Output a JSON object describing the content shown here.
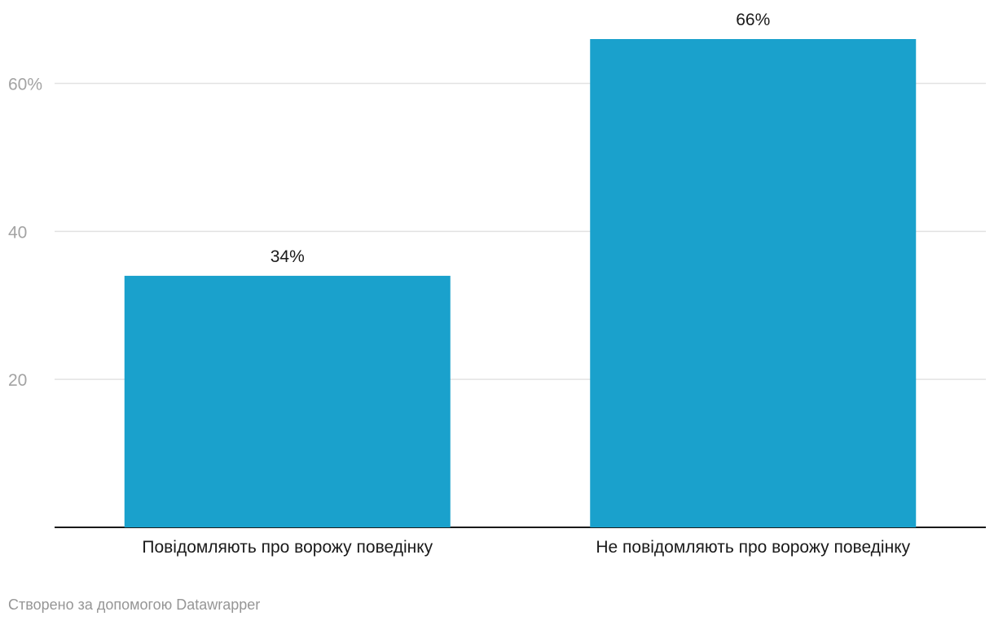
{
  "chart_data": {
    "type": "bar",
    "categories": [
      "Повідомляють про ворожу поведінку",
      "Не повідомляють про ворожу поведінку"
    ],
    "values": [
      34,
      66
    ],
    "value_labels": [
      "34%",
      "66%"
    ],
    "y_ticks": [
      {
        "value": 20,
        "label": "20"
      },
      {
        "value": 40,
        "label": "40"
      },
      {
        "value": 60,
        "label": "60%"
      }
    ],
    "ylim": [
      0,
      66
    ],
    "grid": true,
    "bar_color": "#1aa1cc",
    "title": "",
    "xlabel": "",
    "ylabel": ""
  },
  "footer": {
    "credit": "Створено за допомогою Datawrapper"
  }
}
